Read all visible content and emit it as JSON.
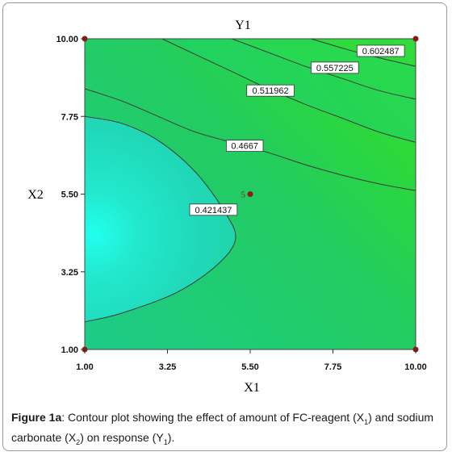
{
  "chart_data": {
    "type": "contour",
    "title": "Y1",
    "xlabel": "X1",
    "ylabel": "X2",
    "xlim": [
      1.0,
      10.0
    ],
    "ylim": [
      1.0,
      10.0
    ],
    "x_ticks": [
      "1.00",
      "3.25",
      "5.50",
      "7.75",
      "10.00"
    ],
    "y_ticks": [
      "1.00",
      "3.25",
      "5.50",
      "7.75",
      "10.00"
    ],
    "contours": [
      {
        "label": "0.602487",
        "points": [
          [
            7.15,
            10.0
          ],
          [
            8.1,
            9.7
          ],
          [
            9.0,
            9.45
          ],
          [
            10.0,
            9.2
          ]
        ]
      },
      {
        "label": "0.557225",
        "points": [
          [
            5.0,
            10.0
          ],
          [
            6.0,
            9.6
          ],
          [
            7.0,
            9.2
          ],
          [
            8.0,
            8.85
          ],
          [
            9.0,
            8.5
          ],
          [
            10.0,
            8.25
          ]
        ]
      },
      {
        "label": "0.511962",
        "points": [
          [
            3.1,
            10.0
          ],
          [
            4.0,
            9.55
          ],
          [
            5.0,
            9.05
          ],
          [
            6.0,
            8.55
          ],
          [
            7.0,
            8.1
          ],
          [
            8.0,
            7.7
          ],
          [
            9.0,
            7.3
          ],
          [
            10.0,
            7.0
          ]
        ]
      },
      {
        "label": "0.4667",
        "points": [
          [
            1.0,
            8.55
          ],
          [
            2.0,
            8.2
          ],
          [
            3.0,
            7.75
          ],
          [
            4.0,
            7.3
          ],
          [
            5.0,
            7.0
          ],
          [
            6.0,
            6.7
          ],
          [
            7.0,
            6.35
          ],
          [
            8.0,
            6.05
          ],
          [
            9.0,
            5.8
          ],
          [
            10.0,
            5.6
          ]
        ]
      },
      {
        "label": "0.421437",
        "points": [
          [
            1.0,
            7.75
          ],
          [
            2.0,
            7.55
          ],
          [
            3.0,
            7.05
          ],
          [
            4.0,
            6.15
          ],
          [
            4.8,
            5.0
          ],
          [
            5.1,
            4.2
          ],
          [
            4.6,
            3.45
          ],
          [
            3.5,
            2.65
          ],
          [
            2.0,
            2.05
          ],
          [
            1.0,
            1.8
          ]
        ]
      }
    ],
    "labels": [
      {
        "text": "0.602487",
        "x": 9.05,
        "y": 9.65
      },
      {
        "text": "0.557225",
        "x": 7.8,
        "y": 9.16
      },
      {
        "text": "0.511962",
        "x": 6.05,
        "y": 8.5
      },
      {
        "text": "0.4667",
        "x": 5.35,
        "y": 6.9
      },
      {
        "text": "0.421437",
        "x": 4.5,
        "y": 5.05
      }
    ],
    "design_points": [
      [
        1.0,
        10.0
      ],
      [
        10.0,
        10.0
      ],
      [
        1.0,
        1.0
      ],
      [
        10.0,
        1.0
      ],
      [
        5.5,
        5.5
      ]
    ],
    "center_point": {
      "label": "5",
      "x": 5.5,
      "y": 5.5
    }
  },
  "caption": {
    "figure": "Figure 1a",
    "text": ": Contour plot showing the effect of amount of FC-reagent (X",
    "sub1": "1",
    "mid": ") and sodium carbonate (X",
    "sub2": "2",
    "tail": ") on response (Y",
    "sub3": "1",
    "end": ")."
  }
}
